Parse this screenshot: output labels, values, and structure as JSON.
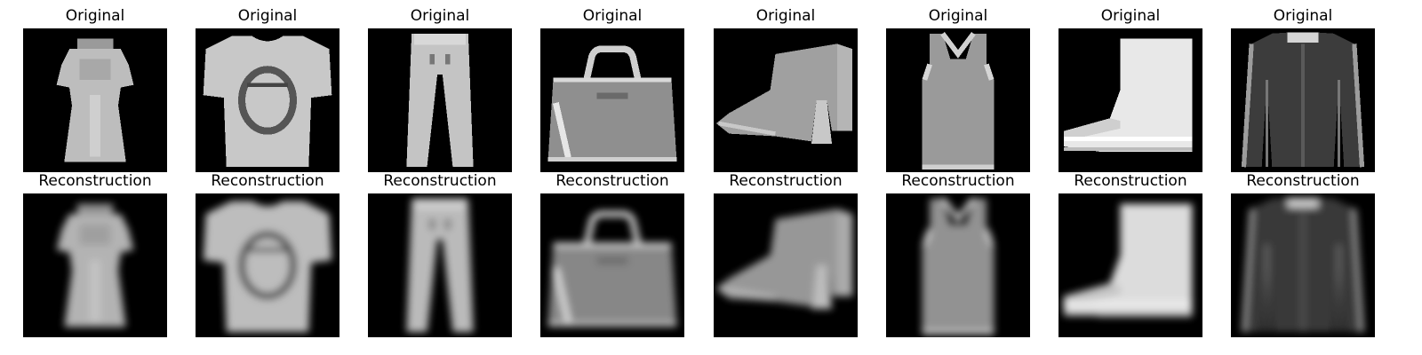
{
  "figure": {
    "rows": [
      {
        "title": "Original",
        "items": [
          {
            "icon": "dress-icon",
            "style": "sharp"
          },
          {
            "icon": "tshirt-icon",
            "style": "sharp"
          },
          {
            "icon": "trousers-icon",
            "style": "sharp"
          },
          {
            "icon": "bag-icon",
            "style": "sharp"
          },
          {
            "icon": "ankle-boot-icon",
            "style": "sharp"
          },
          {
            "icon": "tank-top-icon",
            "style": "sharp"
          },
          {
            "icon": "white-boot-icon",
            "style": "sharp"
          },
          {
            "icon": "shirt-icon",
            "style": "sharp"
          }
        ]
      },
      {
        "title": "Reconstruction",
        "items": [
          {
            "icon": "dress-icon",
            "style": "blurred"
          },
          {
            "icon": "tshirt-icon",
            "style": "blurred"
          },
          {
            "icon": "trousers-icon",
            "style": "blurred"
          },
          {
            "icon": "bag-icon",
            "style": "blurred"
          },
          {
            "icon": "ankle-boot-icon",
            "style": "blurred"
          },
          {
            "icon": "tank-top-icon",
            "style": "blurred"
          },
          {
            "icon": "white-boot-icon",
            "style": "blurred"
          },
          {
            "icon": "shirt-icon",
            "style": "blurred"
          }
        ]
      }
    ],
    "colors": {
      "background": "#ffffff",
      "image_background": "#000000",
      "title_text": "#000000"
    }
  }
}
